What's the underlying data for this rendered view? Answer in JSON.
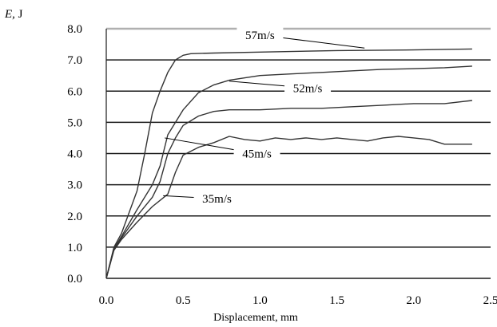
{
  "chart_data": {
    "type": "line",
    "title": "",
    "xlabel": "Displacement, mm",
    "ylabel_var": "E,",
    "ylabel_unit": " J",
    "xlim": [
      0,
      2.5
    ],
    "ylim": [
      0,
      8
    ],
    "x_ticks": [
      "0.0",
      "0.5",
      "1.0",
      "1.5",
      "2.0",
      "2.5"
    ],
    "y_ticks": [
      "0.0",
      "1.0",
      "2.0",
      "3.0",
      "4.0",
      "5.0",
      "6.0",
      "7.0",
      "8.0"
    ],
    "grid": "horizontal",
    "series": [
      {
        "name": "35m/s",
        "x": [
          0,
          0.05,
          0.1,
          0.2,
          0.3,
          0.4,
          0.45,
          0.5,
          0.6,
          0.7,
          0.8,
          0.9,
          1.0,
          1.1,
          1.2,
          1.3,
          1.4,
          1.5,
          1.6,
          1.7,
          1.8,
          1.9,
          2.0,
          2.1,
          2.2,
          2.3,
          2.38
        ],
        "y": [
          0,
          0.9,
          1.25,
          1.8,
          2.3,
          2.7,
          3.4,
          3.95,
          4.2,
          4.35,
          4.55,
          4.45,
          4.4,
          4.5,
          4.45,
          4.5,
          4.45,
          4.5,
          4.45,
          4.4,
          4.5,
          4.55,
          4.5,
          4.45,
          4.3,
          4.3,
          4.3
        ]
      },
      {
        "name": "45m/s",
        "x": [
          0,
          0.05,
          0.1,
          0.2,
          0.3,
          0.35,
          0.4,
          0.45,
          0.5,
          0.6,
          0.7,
          0.8,
          1.0,
          1.2,
          1.4,
          1.6,
          1.8,
          2.0,
          2.2,
          2.38
        ],
        "y": [
          0,
          0.95,
          1.3,
          2.0,
          2.6,
          3.1,
          4.0,
          4.5,
          4.9,
          5.2,
          5.35,
          5.4,
          5.4,
          5.45,
          5.45,
          5.5,
          5.55,
          5.6,
          5.6,
          5.7
        ]
      },
      {
        "name": "52m/s",
        "x": [
          0,
          0.05,
          0.1,
          0.2,
          0.3,
          0.35,
          0.4,
          0.5,
          0.6,
          0.7,
          0.8,
          1.0,
          1.2,
          1.4,
          1.6,
          1.8,
          2.0,
          2.2,
          2.38
        ],
        "y": [
          0,
          0.95,
          1.35,
          2.2,
          3.0,
          3.6,
          4.6,
          5.4,
          5.95,
          6.2,
          6.35,
          6.5,
          6.55,
          6.6,
          6.65,
          6.7,
          6.72,
          6.75,
          6.8
        ]
      },
      {
        "name": "57m/s",
        "x": [
          0,
          0.05,
          0.1,
          0.2,
          0.25,
          0.3,
          0.35,
          0.4,
          0.45,
          0.5,
          0.55,
          0.7,
          1.0,
          1.5,
          2.0,
          2.38
        ],
        "y": [
          0,
          1.0,
          1.45,
          2.8,
          4.0,
          5.3,
          6.0,
          6.6,
          7.0,
          7.15,
          7.2,
          7.22,
          7.25,
          7.3,
          7.32,
          7.35
        ]
      }
    ],
    "annotations": [
      {
        "text": "57m/s",
        "from": [
          1.0,
          7.8
        ],
        "to": [
          1.68,
          7.38
        ]
      },
      {
        "text": "52m/s",
        "from": [
          1.31,
          6.1
        ],
        "to": [
          0.8,
          6.32
        ]
      },
      {
        "text": "45m/s",
        "from": [
          0.98,
          4.0
        ],
        "to": [
          0.38,
          4.5
        ]
      },
      {
        "text": "35m/s",
        "from": [
          0.72,
          2.55
        ],
        "to": [
          0.37,
          2.65
        ]
      }
    ],
    "colors": {
      "line": "#333333",
      "grid": "#1a1a1a",
      "background": "#ffffff"
    }
  }
}
